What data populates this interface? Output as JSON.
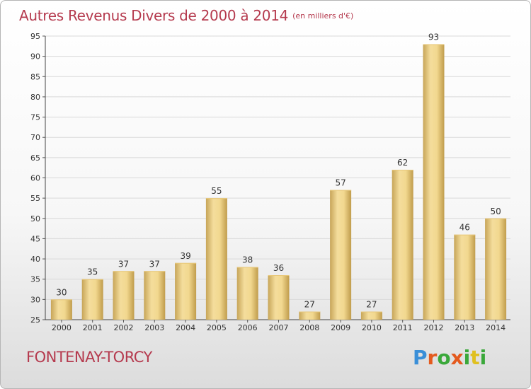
{
  "header": {
    "title": "Autres Revenus Divers de 2000 à 2014",
    "unit": "(en milliers d'€)"
  },
  "footer": {
    "location": "FONTENAY-TORCY",
    "logo": {
      "parts": [
        "Pro",
        "x",
        "iti"
      ],
      "colors": [
        "#3a8fd8",
        "#e0c020",
        "#e45a1e",
        "#3aa83a"
      ]
    }
  },
  "colors": {
    "accent": "#b53a4e",
    "bar_light": "#f4dd9c",
    "bar_dark": "#c7a558",
    "grid": "#d9d9d9"
  },
  "chart_data": {
    "type": "bar",
    "title": "Autres Revenus Divers de 2000 à 2014",
    "subtitle": "(en milliers d'€)",
    "xlabel": "",
    "ylabel": "",
    "categories": [
      "2000",
      "2001",
      "2002",
      "2003",
      "2004",
      "2005",
      "2006",
      "2007",
      "2008",
      "2009",
      "2010",
      "2011",
      "2012",
      "2013",
      "2014"
    ],
    "values": [
      30,
      35,
      37,
      37,
      39,
      55,
      38,
      36,
      27,
      57,
      27,
      62,
      93,
      46,
      50
    ],
    "data_labels": [
      "30",
      "35",
      "37",
      "37",
      "39",
      "55",
      "38",
      "36",
      "27",
      "57",
      "27",
      "62",
      "93",
      "46",
      "50"
    ],
    "ylim": [
      25,
      95
    ],
    "yticks": [
      25,
      30,
      35,
      40,
      45,
      50,
      55,
      60,
      65,
      70,
      75,
      80,
      85,
      90,
      95
    ],
    "ytick_labels": [
      "25",
      "30",
      "35",
      "40",
      "45",
      "50",
      "55",
      "60",
      "65",
      "70",
      "75",
      "80",
      "85",
      "90",
      "95"
    ],
    "grid": true,
    "legend": "none"
  }
}
